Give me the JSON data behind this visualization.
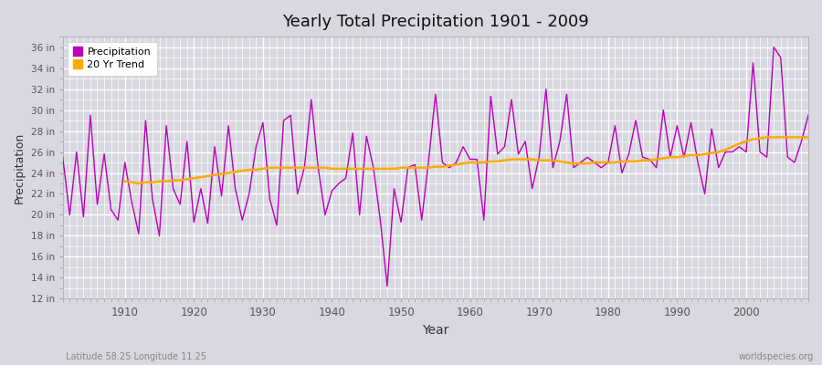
{
  "title": "Yearly Total Precipitation 1901 - 2009",
  "xlabel": "Year",
  "ylabel": "Precipitation",
  "bottom_left_label": "Latitude 58.25 Longitude 11.25",
  "bottom_right_label": "worldspecies.org",
  "bg_color": "#d8d8e0",
  "plot_bg_color": "#d8d8e0",
  "grid_color": "#ffffff",
  "precip_color": "#bb00bb",
  "trend_color": "#ffaa00",
  "ylim": [
    12,
    37
  ],
  "yticks": [
    12,
    14,
    16,
    18,
    20,
    22,
    24,
    26,
    28,
    30,
    32,
    34,
    36
  ],
  "xlim_min": 1901,
  "xlim_max": 2009,
  "xticks": [
    1910,
    1920,
    1930,
    1940,
    1950,
    1960,
    1970,
    1980,
    1990,
    2000
  ],
  "years": [
    1901,
    1902,
    1903,
    1904,
    1905,
    1906,
    1907,
    1908,
    1909,
    1910,
    1911,
    1912,
    1913,
    1914,
    1915,
    1916,
    1917,
    1918,
    1919,
    1920,
    1921,
    1922,
    1923,
    1924,
    1925,
    1926,
    1927,
    1928,
    1929,
    1930,
    1931,
    1932,
    1933,
    1934,
    1935,
    1936,
    1937,
    1938,
    1939,
    1940,
    1941,
    1942,
    1943,
    1944,
    1945,
    1946,
    1947,
    1948,
    1949,
    1950,
    1951,
    1952,
    1953,
    1954,
    1955,
    1956,
    1957,
    1958,
    1959,
    1960,
    1961,
    1962,
    1963,
    1964,
    1965,
    1966,
    1967,
    1968,
    1969,
    1970,
    1971,
    1972,
    1973,
    1974,
    1975,
    1976,
    1977,
    1978,
    1979,
    1980,
    1981,
    1982,
    1983,
    1984,
    1985,
    1986,
    1987,
    1988,
    1989,
    1990,
    1991,
    1992,
    1993,
    1994,
    1995,
    1996,
    1997,
    1998,
    1999,
    2000,
    2001,
    2002,
    2003,
    2004,
    2005,
    2006,
    2007,
    2008,
    2009
  ],
  "precip": [
    25.5,
    20.0,
    26.0,
    19.8,
    29.5,
    21.0,
    25.8,
    20.5,
    19.5,
    25.0,
    21.2,
    18.2,
    29.0,
    21.5,
    18.0,
    28.5,
    22.5,
    21.0,
    27.0,
    19.3,
    22.5,
    19.2,
    26.5,
    21.8,
    28.5,
    22.5,
    19.5,
    22.0,
    26.5,
    28.8,
    21.5,
    19.0,
    29.0,
    29.5,
    22.0,
    24.5,
    31.0,
    24.5,
    20.0,
    22.3,
    23.0,
    23.5,
    27.8,
    20.0,
    27.5,
    24.5,
    19.5,
    13.2,
    22.5,
    19.3,
    24.5,
    24.8,
    19.5,
    25.2,
    31.5,
    25.0,
    24.5,
    25.0,
    26.5,
    25.3,
    25.3,
    19.5,
    31.3,
    25.8,
    26.5,
    31.0,
    25.8,
    27.0,
    22.5,
    25.5,
    32.0,
    24.5,
    27.0,
    31.5,
    24.5,
    25.0,
    25.5,
    25.0,
    24.5,
    25.0,
    28.5,
    24.0,
    25.8,
    29.0,
    25.5,
    25.3,
    24.5,
    30.0,
    25.5,
    28.5,
    25.5,
    28.8,
    25.0,
    22.0,
    28.2,
    24.5,
    26.0,
    26.0,
    26.5,
    26.0,
    34.5,
    26.0,
    25.5,
    36.0,
    35.0,
    25.5,
    25.0,
    27.0,
    29.5
  ],
  "trend": [
    null,
    null,
    null,
    null,
    null,
    null,
    null,
    null,
    null,
    23.2,
    23.1,
    23.0,
    23.1,
    23.1,
    23.2,
    23.2,
    23.3,
    23.3,
    23.4,
    23.5,
    23.6,
    23.7,
    23.8,
    23.9,
    24.0,
    24.1,
    24.2,
    24.3,
    24.3,
    24.4,
    24.5,
    24.5,
    24.5,
    24.5,
    24.5,
    24.5,
    24.5,
    24.5,
    24.5,
    24.4,
    24.4,
    24.4,
    24.4,
    24.4,
    24.4,
    24.4,
    24.4,
    24.4,
    24.4,
    24.5,
    24.5,
    24.5,
    24.5,
    24.5,
    24.6,
    24.6,
    24.7,
    24.8,
    24.9,
    25.0,
    25.0,
    25.0,
    25.1,
    25.1,
    25.2,
    25.3,
    25.3,
    25.3,
    25.3,
    25.2,
    25.2,
    25.2,
    25.1,
    25.0,
    24.9,
    24.9,
    24.9,
    25.0,
    25.0,
    25.0,
    25.0,
    25.1,
    25.1,
    25.1,
    25.2,
    25.2,
    25.3,
    25.4,
    25.5,
    25.5,
    25.6,
    25.7,
    25.7,
    25.8,
    25.9,
    26.0,
    26.2,
    26.5,
    26.8,
    27.0,
    27.2,
    27.3,
    27.4,
    27.4,
    27.4,
    27.4,
    27.4,
    27.4,
    27.4
  ]
}
